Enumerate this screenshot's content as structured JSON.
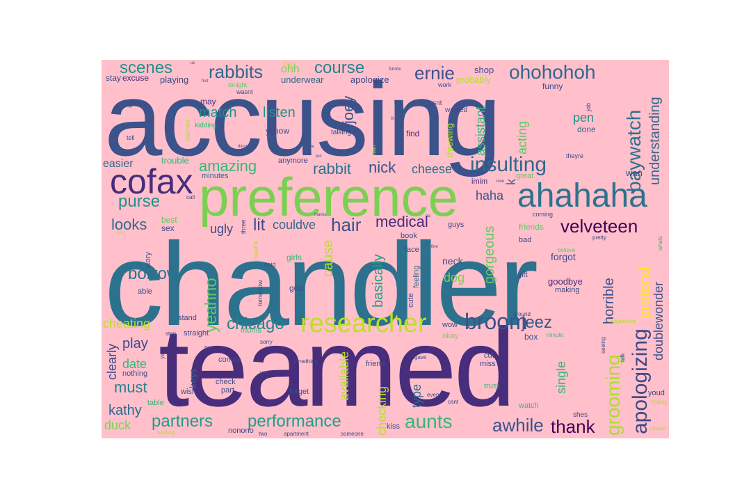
{
  "word_cloud": {
    "background_color": "#ffc0cb",
    "palette": [
      "#3b528b",
      "#472d7b",
      "#21918c",
      "#2c728e",
      "#28ae80",
      "#5ec962",
      "#addc30",
      "#fde725",
      "#440154"
    ],
    "words": [
      {
        "text": "chandler",
        "color": "#2c728e"
      },
      {
        "text": "accusing",
        "color": "#3b528b"
      },
      {
        "text": "teamed",
        "color": "#472d7b"
      },
      {
        "text": "preference",
        "color": "#7ad151"
      },
      {
        "text": "ahahaha",
        "color": "#2c728e"
      },
      {
        "text": "cofax",
        "color": "#472d7b"
      },
      {
        "text": "researcher",
        "color": "#bddf26"
      },
      {
        "text": "insulting",
        "color": "#31688e"
      },
      {
        "text": "ohohohoh",
        "color": "#31688e"
      },
      {
        "text": "baywatch",
        "color": "#2c728e"
      },
      {
        "text": "understanding",
        "color": "#31688e"
      },
      {
        "text": "apologizing",
        "color": "#3e4989"
      },
      {
        "text": "grooming",
        "color": "#addc30"
      },
      {
        "text": "pretend",
        "color": "#fde725"
      },
      {
        "text": "doublewonder",
        "color": "#3b528b"
      },
      {
        "text": "horrible",
        "color": "#3b528b"
      },
      {
        "text": "broom",
        "color": "#3b528b"
      },
      {
        "text": "velveteen",
        "color": "#440154"
      },
      {
        "text": "medical",
        "color": "#472d7b"
      },
      {
        "text": "hair",
        "color": "#3b528b"
      },
      {
        "text": "aunts",
        "color": "#35b779"
      },
      {
        "text": "awhile",
        "color": "#3b528b"
      },
      {
        "text": "thank",
        "color": "#440154"
      },
      {
        "text": "jeez",
        "color": "#3b528b"
      },
      {
        "text": "performance",
        "color": "#1f9e89"
      },
      {
        "text": "partners",
        "color": "#1f9e89"
      },
      {
        "text": "chicago",
        "color": "#26828e"
      },
      {
        "text": "yeahno",
        "color": "#5ec962"
      },
      {
        "text": "joey",
        "color": "#3b528b"
      },
      {
        "text": "rabbits",
        "color": "#31688e"
      },
      {
        "text": "course",
        "color": "#26828e"
      },
      {
        "text": "ernie",
        "color": "#3b528b"
      },
      {
        "text": "scenes",
        "color": "#21918c"
      },
      {
        "text": "purse",
        "color": "#21918c"
      },
      {
        "text": "looks",
        "color": "#31688e"
      },
      {
        "text": "lit",
        "color": "#3e4989"
      },
      {
        "text": "couldve",
        "color": "#31688e"
      },
      {
        "text": "ugly",
        "color": "#3e4989"
      },
      {
        "text": "borrow",
        "color": "#2c728e"
      },
      {
        "text": "amazing",
        "color": "#35b779"
      },
      {
        "text": "rabbit",
        "color": "#2c728e"
      },
      {
        "text": "nick",
        "color": "#3b528b"
      },
      {
        "text": "cheese",
        "color": "#2c728e"
      },
      {
        "text": "match",
        "color": "#21918c"
      },
      {
        "text": "listen",
        "color": "#21918c"
      },
      {
        "text": "basically",
        "color": "#1f9e89"
      },
      {
        "text": "cause",
        "color": "#b5de2b"
      },
      {
        "text": "gorgeous",
        "color": "#5ec962"
      },
      {
        "text": "dog",
        "color": "#7ad151"
      },
      {
        "text": "haha",
        "color": "#3b528b"
      },
      {
        "text": "acting",
        "color": "#5ec962"
      },
      {
        "text": "assistant",
        "color": "#35b779"
      },
      {
        "text": "pen",
        "color": "#21918c"
      },
      {
        "text": "cheating",
        "color": "#b5de2b"
      },
      {
        "text": "play",
        "color": "#3e4989"
      },
      {
        "text": "must",
        "color": "#26828e"
      },
      {
        "text": "kathy",
        "color": "#31688e"
      },
      {
        "text": "duck",
        "color": "#7ad151"
      },
      {
        "text": "date",
        "color": "#35b779"
      },
      {
        "text": "clearly",
        "color": "#3e4989"
      },
      {
        "text": "available",
        "color": "#b5de2b"
      },
      {
        "text": "checking",
        "color": "#b5de2b"
      },
      {
        "text": "type",
        "color": "#31688e"
      },
      {
        "text": "single",
        "color": "#35b779"
      },
      {
        "text": "easier",
        "color": "#31688e"
      },
      {
        "text": "forgot",
        "color": "#3e4989"
      },
      {
        "text": "goodbye",
        "color": "#472d7b"
      },
      {
        "text": "k",
        "color": "#31688e"
      },
      {
        "text": "neck",
        "color": "#3b528b"
      },
      {
        "text": "keys",
        "color": "#31688e"
      },
      {
        "text": "stay",
        "color": "#3e4989"
      },
      {
        "text": "excuse",
        "color": "#472d7b"
      },
      {
        "text": "playing",
        "color": "#3e4989"
      },
      {
        "text": "ohh",
        "color": "#7ad151"
      },
      {
        "text": "underwear",
        "color": "#31688e"
      },
      {
        "text": "apologize",
        "color": "#3e4989"
      },
      {
        "text": "shop",
        "color": "#3e4989"
      },
      {
        "text": "probably",
        "color": "#b5de2b"
      },
      {
        "text": "grow",
        "color": "#3e4989"
      },
      {
        "text": "may",
        "color": "#472d7b"
      },
      {
        "text": "yknow",
        "color": "#3e4989"
      },
      {
        "text": "kidding",
        "color": "#35b779"
      },
      {
        "text": "picked",
        "color": "#3b528b"
      },
      {
        "text": "find",
        "color": "#472d7b"
      },
      {
        "text": "throwing",
        "color": "#b5de2b"
      },
      {
        "text": "great",
        "color": "#5ec962"
      },
      {
        "text": "done",
        "color": "#31688e"
      },
      {
        "text": "funny",
        "color": "#3e4989"
      },
      {
        "text": "trouble",
        "color": "#35b779"
      },
      {
        "text": "anymore",
        "color": "#3e4989"
      },
      {
        "text": "minutes",
        "color": "#31688e"
      },
      {
        "text": "talking",
        "color": "#3e4989"
      },
      {
        "text": "wan",
        "color": "#3e4989"
      },
      {
        "text": "imim",
        "color": "#472d7b"
      },
      {
        "text": "sex",
        "color": "#3e4989"
      },
      {
        "text": "best",
        "color": "#5ec962"
      },
      {
        "text": "guys",
        "color": "#3e4989"
      },
      {
        "text": "friends",
        "color": "#5ec962"
      },
      {
        "text": "bad",
        "color": "#3e4989"
      },
      {
        "text": "book",
        "color": "#3e4989"
      },
      {
        "text": "face",
        "color": "#3e4989"
      },
      {
        "text": "girls",
        "color": "#35b779"
      },
      {
        "text": "story",
        "color": "#3b528b"
      },
      {
        "text": "able",
        "color": "#3e4989"
      },
      {
        "text": "god",
        "color": "#3e4989"
      },
      {
        "text": "feeling",
        "color": "#31688e"
      },
      {
        "text": "cute",
        "color": "#3e4989"
      },
      {
        "text": "gift",
        "color": "#3e4989"
      },
      {
        "text": "making",
        "color": "#3e4989"
      },
      {
        "text": "stand",
        "color": "#3e4989"
      },
      {
        "text": "straight",
        "color": "#3e4989"
      },
      {
        "text": "moms",
        "color": "#35b779"
      },
      {
        "text": "wow",
        "color": "#3e4989"
      },
      {
        "text": "okay",
        "color": "#7ad151"
      },
      {
        "text": "box",
        "color": "#3b528b"
      },
      {
        "text": "cut",
        "color": "#3e4989"
      },
      {
        "text": "miss",
        "color": "#3e4989"
      },
      {
        "text": "comes",
        "color": "#3e4989"
      },
      {
        "text": "check",
        "color": "#3e4989"
      },
      {
        "text": "part",
        "color": "#3e4989"
      },
      {
        "text": "wish",
        "color": "#3e4989"
      },
      {
        "text": "forget",
        "color": "#3e4989"
      },
      {
        "text": "friend",
        "color": "#3e4989"
      },
      {
        "text": "trust",
        "color": "#35b779"
      },
      {
        "text": "watch",
        "color": "#35b779"
      },
      {
        "text": "nothing",
        "color": "#3e4989"
      },
      {
        "text": "table",
        "color": "#35b779"
      },
      {
        "text": "kiss",
        "color": "#3e4989"
      },
      {
        "text": "nonono",
        "color": "#3e4989"
      },
      {
        "text": "youd",
        "color": "#3e4989"
      },
      {
        "text": "shes",
        "color": "#3e4989"
      },
      {
        "text": "today",
        "color": "#b5de2b"
      },
      {
        "text": "wanted",
        "color": "#3e4989"
      },
      {
        "text": "isnt",
        "color": "#3e4989"
      },
      {
        "text": "work",
        "color": "#3e4989"
      },
      {
        "text": "tell",
        "color": "#3e4989"
      },
      {
        "text": "hard",
        "color": "#b5de2b"
      },
      {
        "text": "tonight",
        "color": "#5ec962"
      },
      {
        "text": "wasnt",
        "color": "#3e4989"
      },
      {
        "text": "know",
        "color": "#3e4989"
      },
      {
        "text": "job",
        "color": "#3e4989"
      },
      {
        "text": "theyre",
        "color": "#3e4989"
      },
      {
        "text": "coming",
        "color": "#3e4989"
      },
      {
        "text": "pretty",
        "color": "#3e4989"
      },
      {
        "text": "learned",
        "color": "#b5de2b"
      },
      {
        "text": "call",
        "color": "#3e4989"
      },
      {
        "text": "three",
        "color": "#3e4989"
      },
      {
        "text": "couldnt",
        "color": "#b5de2b"
      },
      {
        "text": "said",
        "color": "#3e4989"
      },
      {
        "text": "tomorrow",
        "color": "#3e4989"
      },
      {
        "text": "around",
        "color": "#3e4989"
      },
      {
        "text": "believe",
        "color": "#5ec962"
      },
      {
        "text": "whats",
        "color": "#35b779"
      },
      {
        "text": "stop",
        "color": "#3e4989"
      },
      {
        "text": "try",
        "color": "#3e4989"
      },
      {
        "text": "sorry",
        "color": "#3e4989"
      },
      {
        "text": "ya",
        "color": "#3e4989"
      },
      {
        "text": "something",
        "color": "#3e4989"
      },
      {
        "text": "gave",
        "color": "#3e4989"
      },
      {
        "text": "even",
        "color": "#3e4989"
      },
      {
        "text": "cant",
        "color": "#3e4989"
      },
      {
        "text": "two",
        "color": "#3e4989"
      },
      {
        "text": "apartment",
        "color": "#3e4989"
      },
      {
        "text": "someone",
        "color": "#3e4989"
      },
      {
        "text": "please",
        "color": "#b5de2b"
      },
      {
        "text": "waiting",
        "color": "#b5de2b"
      },
      {
        "text": "seeing",
        "color": "#3e4989"
      },
      {
        "text": "talk",
        "color": "#3e4989"
      },
      {
        "text": "minute",
        "color": "#35b779"
      },
      {
        "text": "happened",
        "color": "#b5de2b"
      },
      {
        "text": "yes",
        "color": "#3e4989"
      },
      {
        "text": "thanks",
        "color": "#3e4989"
      },
      {
        "text": "love",
        "color": "#3e4989"
      },
      {
        "text": "fine",
        "color": "#3e4989"
      },
      {
        "text": "thing",
        "color": "#3e4989"
      },
      {
        "text": "bye",
        "color": "#3e4989"
      },
      {
        "text": "first",
        "color": "#3e4989"
      },
      {
        "text": "us",
        "color": "#3e4989"
      },
      {
        "text": "ill",
        "color": "#3e4989"
      },
      {
        "text": "didnt",
        "color": "#b5de2b"
      },
      {
        "text": "put",
        "color": "#3e4989"
      },
      {
        "text": "um",
        "color": "#3e4989"
      },
      {
        "text": "na",
        "color": "#3e4989"
      },
      {
        "text": "sorry",
        "color": "#b5de2b"
      }
    ]
  }
}
